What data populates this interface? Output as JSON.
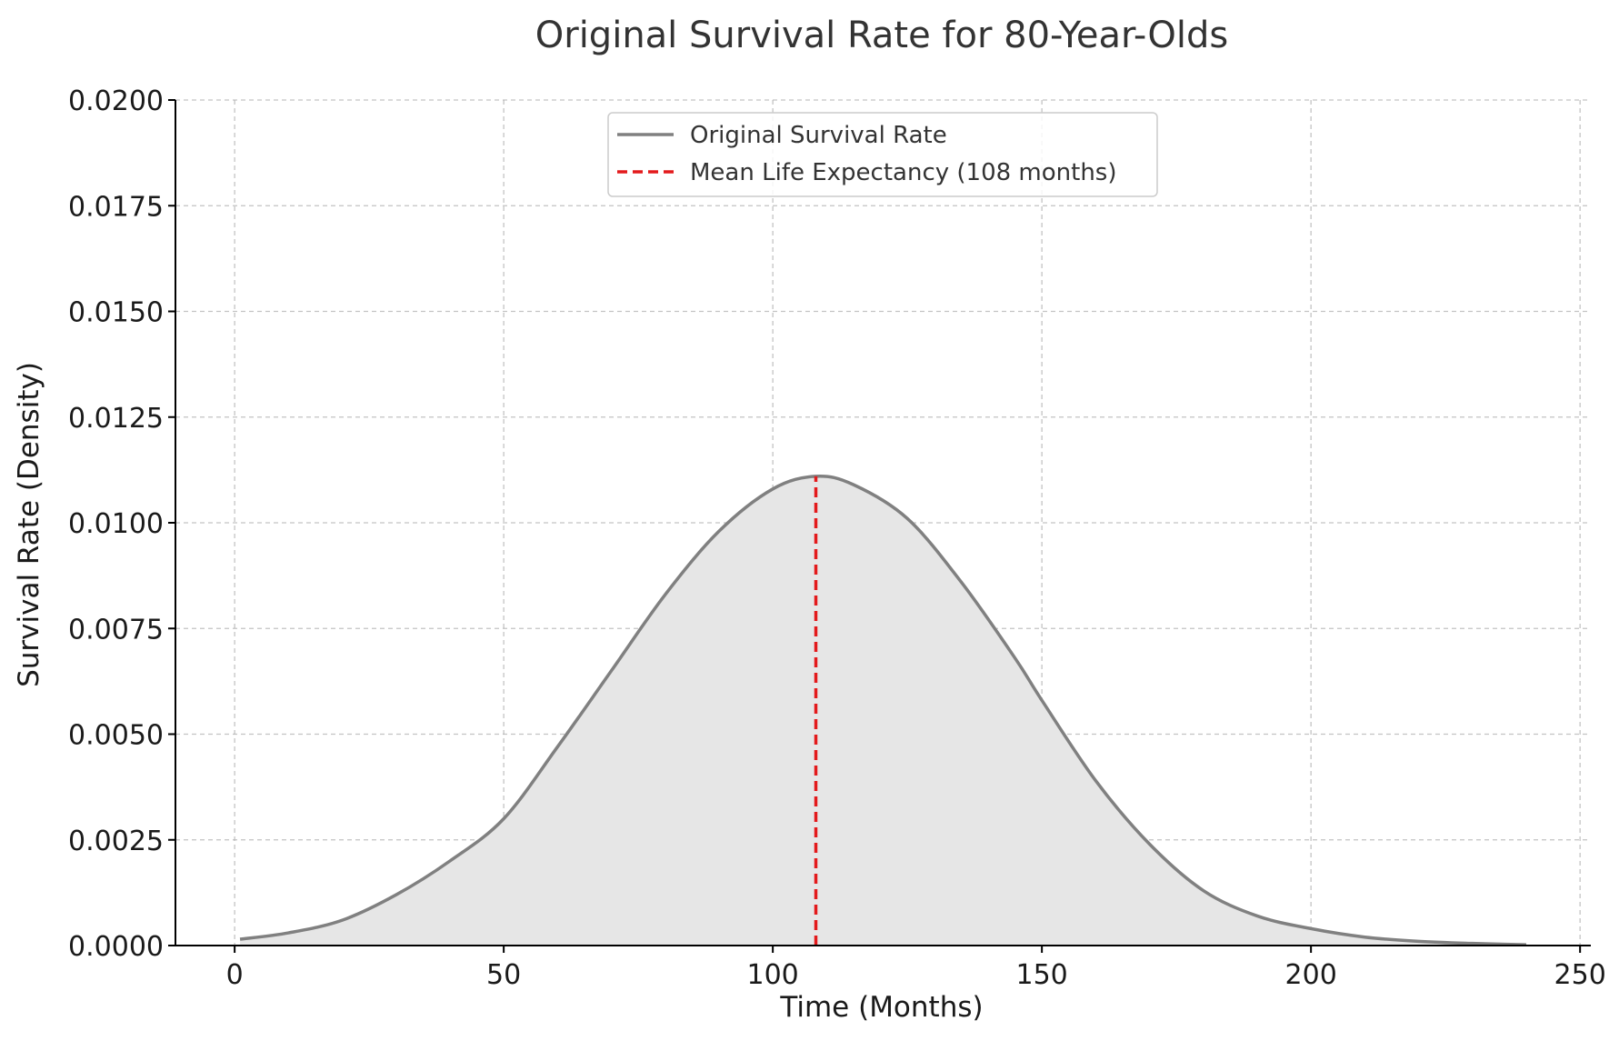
{
  "chart_data": {
    "type": "area",
    "title": "Original Survival Rate for 80-Year-Olds",
    "xlabel": "Time (Months)",
    "ylabel": "Survival Rate (Density)",
    "xlim": [
      -11,
      252
    ],
    "ylim": [
      0,
      0.02
    ],
    "x_ticks": [
      0,
      50,
      100,
      150,
      200,
      250
    ],
    "x_tick_labels": [
      "0",
      "50",
      "100",
      "150",
      "200",
      "250"
    ],
    "y_ticks": [
      0,
      0.0025,
      0.005,
      0.0075,
      0.01,
      0.0125,
      0.015,
      0.0175,
      0.02
    ],
    "y_tick_labels": [
      "0.0000",
      "0.0025",
      "0.0050",
      "0.0075",
      "0.0100",
      "0.0125",
      "0.0150",
      "0.0175",
      "0.0200"
    ],
    "grid": true,
    "legend_position": "top-center",
    "series": [
      {
        "name": "Original Survival Rate",
        "style": "solid",
        "color": "#808080",
        "fill_color": "#e6e6e6",
        "x": [
          1,
          10,
          20,
          30,
          40,
          50,
          60,
          70,
          80,
          90,
          100,
          108,
          115,
          125,
          135,
          145,
          150,
          160,
          170,
          180,
          190,
          200,
          210,
          220,
          230,
          240
        ],
        "y": [
          0.00015,
          0.0003,
          0.0006,
          0.0012,
          0.002,
          0.003,
          0.0047,
          0.0065,
          0.0083,
          0.0098,
          0.0108,
          0.0111,
          0.0109,
          0.0101,
          0.0086,
          0.0068,
          0.0058,
          0.0039,
          0.0024,
          0.0013,
          0.0007,
          0.0004,
          0.0002,
          0.0001,
          5e-05,
          2e-05
        ]
      },
      {
        "name": "Mean Life Expectancy (108 months)",
        "style": "dashed",
        "color": "#e31a1c",
        "x": [
          108,
          108
        ],
        "y": [
          0,
          0.0111
        ]
      }
    ]
  }
}
